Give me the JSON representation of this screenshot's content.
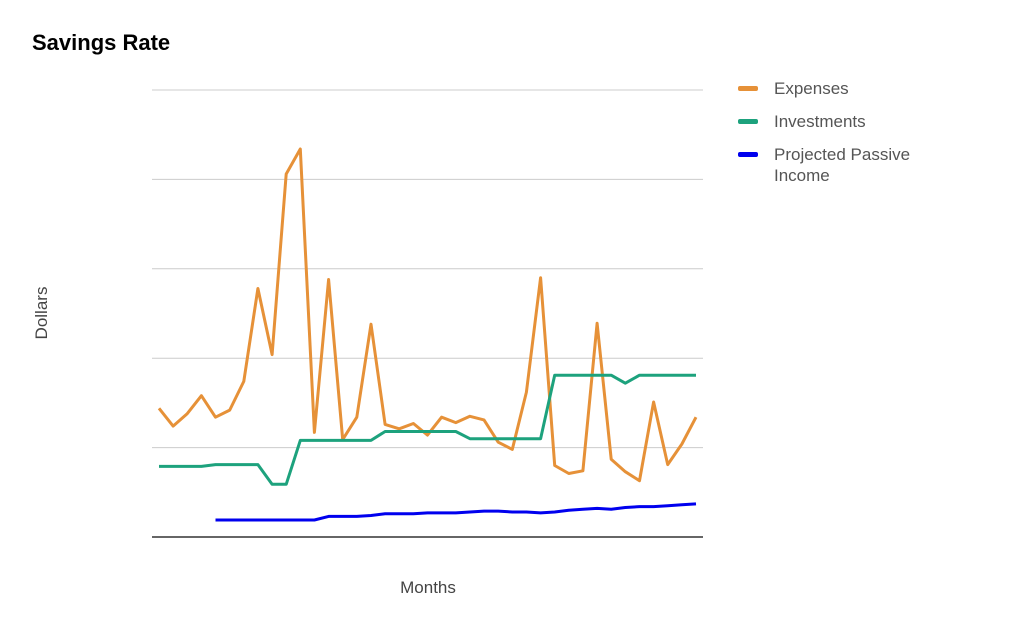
{
  "chart_data": {
    "type": "line",
    "title": "Savings Rate",
    "xlabel": "Months",
    "ylabel": "Dollars",
    "grid": true,
    "legend_position": "right",
    "ylim": [
      0,
      5
    ],
    "series": [
      {
        "name": "Expenses",
        "color": "#e69138",
        "values": [
          1.44,
          1.24,
          1.38,
          1.58,
          1.34,
          1.42,
          1.74,
          2.78,
          2.04,
          4.06,
          4.34,
          1.17,
          2.88,
          1.09,
          1.34,
          2.38,
          1.26,
          1.21,
          1.27,
          1.14,
          1.34,
          1.28,
          1.35,
          1.31,
          1.06,
          0.98,
          1.62,
          2.9,
          0.8,
          0.71,
          0.74,
          2.39,
          0.87,
          0.73,
          0.63,
          1.51,
          0.81,
          1.04,
          1.34
        ]
      },
      {
        "name": "Investments",
        "color": "#1da27d",
        "values": [
          0.79,
          0.79,
          0.79,
          0.79,
          0.81,
          0.81,
          0.81,
          0.81,
          0.59,
          0.59,
          1.08,
          1.08,
          1.08,
          1.08,
          1.08,
          1.08,
          1.18,
          1.18,
          1.18,
          1.18,
          1.18,
          1.18,
          1.1,
          1.1,
          1.1,
          1.1,
          1.1,
          1.1,
          1.81,
          1.81,
          1.81,
          1.81,
          1.81,
          1.72,
          1.81,
          1.81,
          1.81,
          1.81,
          1.81
        ]
      },
      {
        "name": "Projected Passive Income",
        "color": "#0000ee",
        "values": [
          null,
          null,
          null,
          null,
          0.19,
          0.19,
          0.19,
          0.19,
          0.19,
          0.19,
          0.19,
          0.19,
          0.23,
          0.23,
          0.23,
          0.24,
          0.26,
          0.26,
          0.26,
          0.27,
          0.27,
          0.27,
          0.28,
          0.29,
          0.29,
          0.28,
          0.28,
          0.27,
          0.28,
          0.3,
          0.31,
          0.32,
          0.31,
          0.33,
          0.34,
          0.34,
          0.35,
          0.36,
          0.37
        ]
      }
    ]
  }
}
